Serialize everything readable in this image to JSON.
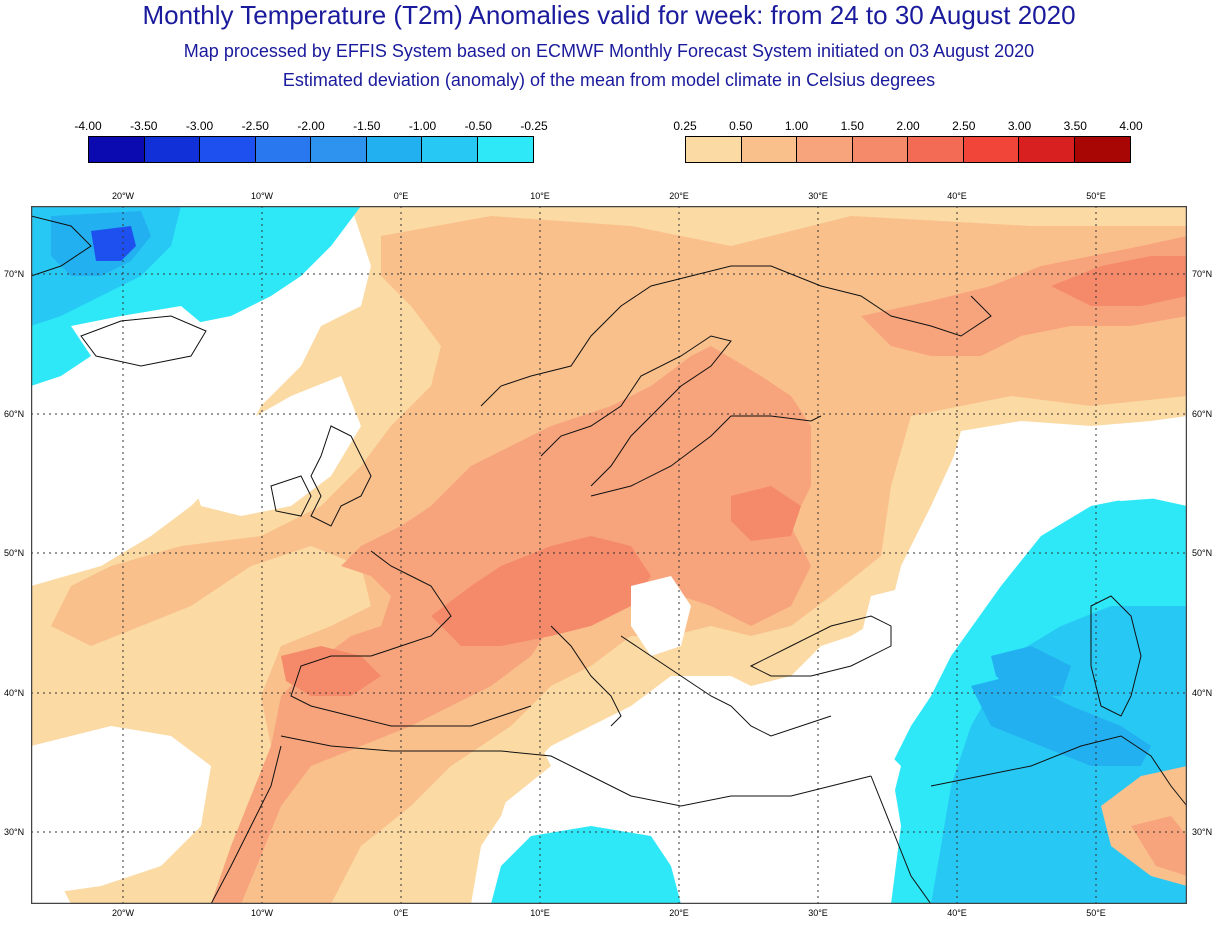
{
  "title": {
    "main": "Monthly Temperature (T2m) Anomalies valid for week: from 24 to 30 August 2020",
    "sub1": "Map processed by EFFIS System based on ECMWF Monthly Forecast System initiated on 03 August 2020",
    "sub2": "Estimated deviation (anomaly) of the mean from model climate in Celsius degrees"
  },
  "legend_negative": {
    "labels": [
      "-4.00",
      "-3.50",
      "-3.00",
      "-2.50",
      "-2.00",
      "-1.50",
      "-1.00",
      "-0.50",
      "-0.25"
    ],
    "colors": [
      "#0a0ab0",
      "#1230d8",
      "#1e50f0",
      "#2a78f0",
      "#2d93ee",
      "#22b0f0",
      "#28c8f4",
      "#2ee8f8"
    ]
  },
  "legend_positive": {
    "labels": [
      "0.25",
      "0.50",
      "1.00",
      "1.50",
      "2.00",
      "2.50",
      "3.00",
      "3.50",
      "4.00"
    ],
    "colors": [
      "#fbdaa4",
      "#f9c08c",
      "#f7a47c",
      "#f58a6a",
      "#f36a55",
      "#f2453a",
      "#d82020",
      "#a80505"
    ]
  },
  "map": {
    "lon_ticks": [
      "20°W",
      "10°W",
      "0°E",
      "10°E",
      "20°E",
      "30°E",
      "40°E",
      "50°E"
    ],
    "lat_ticks": [
      "70°N",
      "60°N",
      "50°N",
      "40°N",
      "30°N"
    ],
    "colors": {
      "ocean_neutral": "#ffffff",
      "frame": "#444444",
      "grid": "#333333",
      "coast": "#111111"
    }
  }
}
